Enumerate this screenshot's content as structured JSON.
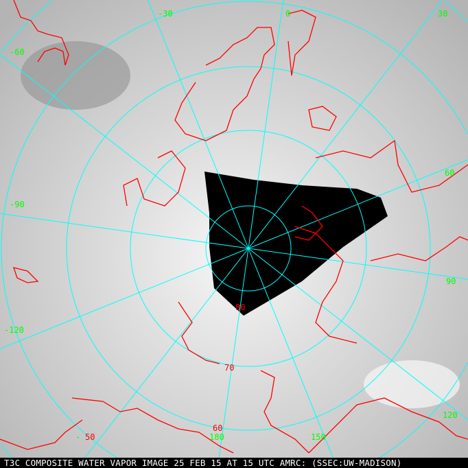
{
  "caption": "T3C COMPOSITE WATER VAPOR IMAGE 25 FEB 15 AT 15 UTC AMRC: (SSEC:UW-MADISON)",
  "longitude_labels": [
    {
      "text": "-30"
    },
    {
      "text": "0"
    },
    {
      "text": "30"
    },
    {
      "text": "-60"
    },
    {
      "text": "-90"
    },
    {
      "text": "60"
    },
    {
      "text": "90"
    },
    {
      "text": "-120"
    },
    {
      "text": "120"
    },
    {
      "text": "150"
    },
    {
      "text": "180"
    },
    {
      "text": "-"
    }
  ],
  "latitude_labels": [
    {
      "text": "80"
    },
    {
      "text": "70"
    },
    {
      "text": "60"
    },
    {
      "text": "50"
    }
  ],
  "colors": {
    "grid": "#00ffff",
    "coast": "#ff0000",
    "lon_label": "#00ff00",
    "lat_label": "#ff0000",
    "no_data": "#000000"
  }
}
